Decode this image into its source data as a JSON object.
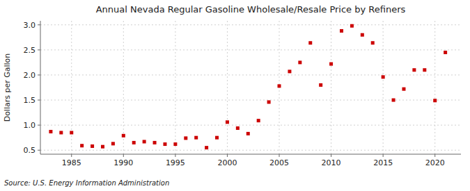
{
  "chart_data": {
    "type": "scatter",
    "title": "Annual Nevada Regular Gasoline Wholesale/Resale Price by Refiners",
    "ylabel": "Dollars per Gallon",
    "source": "Source: U.S. Energy Information Administration",
    "x": [
      1983,
      1984,
      1985,
      1986,
      1987,
      1988,
      1989,
      1990,
      1991,
      1992,
      1993,
      1994,
      1995,
      1996,
      1997,
      1998,
      1999,
      2000,
      2001,
      2002,
      2003,
      2004,
      2005,
      2006,
      2007,
      2008,
      2009,
      2010,
      2011,
      2012,
      2013,
      2014,
      2015,
      2016,
      2017,
      2018,
      2019,
      2020,
      2021
    ],
    "values": [
      0.87,
      0.85,
      0.85,
      0.59,
      0.58,
      0.57,
      0.63,
      0.79,
      0.65,
      0.67,
      0.65,
      0.62,
      0.62,
      0.74,
      0.75,
      0.55,
      0.75,
      1.06,
      0.94,
      0.83,
      1.09,
      1.46,
      1.78,
      2.07,
      2.25,
      2.64,
      1.8,
      2.22,
      2.88,
      2.98,
      2.8,
      2.64,
      1.96,
      1.5,
      1.72,
      2.1,
      2.1,
      1.49,
      2.45
    ],
    "color": "#cc0000",
    "marker": "square",
    "xlim": [
      1982.0,
      2022.5
    ],
    "ylim": [
      0.42,
      3.08
    ],
    "xticks": [
      1985,
      1990,
      1995,
      2000,
      2005,
      2010,
      2015,
      2020
    ],
    "yticks": [
      0.5,
      {
        "value": 1.0,
        "label": "1.0"
      },
      1.5,
      {
        "value": 2.0,
        "label": "2.0"
      },
      2.5,
      {
        "value": 3.0,
        "label": "3.0"
      }
    ],
    "grid": true
  }
}
